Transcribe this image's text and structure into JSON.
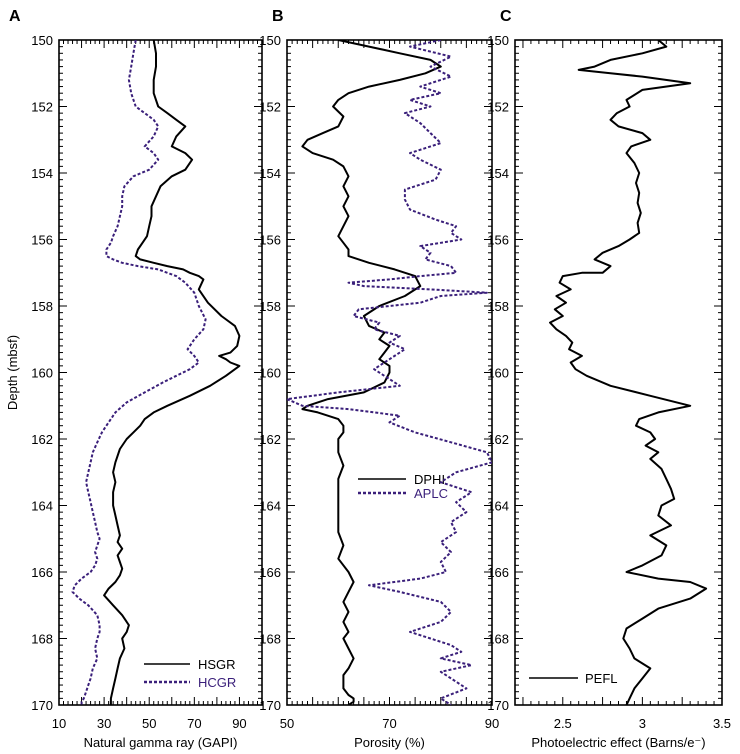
{
  "chart_data": [
    {
      "type": "line",
      "panel_label": "A",
      "xlabel": "Natural gamma ray (GAPI)",
      "ylabel": "Depth (mbsf)",
      "xlim": [
        10,
        100
      ],
      "ylim": [
        150,
        170
      ],
      "x_ticks": [
        10,
        30,
        50,
        70,
        90
      ],
      "y_ticks": [
        150,
        152,
        154,
        156,
        158,
        160,
        162,
        164,
        166,
        168,
        170
      ],
      "legend_position": "bottom-right",
      "series": [
        {
          "name": "HSGR",
          "style": "solid",
          "color": "#000000",
          "x": [
            52,
            53,
            53,
            52,
            52,
            54,
            58,
            62,
            66,
            62,
            60,
            66,
            69,
            66,
            60,
            55,
            53,
            51,
            51,
            50,
            49,
            47,
            45,
            44,
            46,
            52,
            58,
            65,
            68,
            72,
            74,
            72,
            76,
            82,
            88,
            90,
            89,
            86,
            81,
            84,
            86,
            90,
            84,
            77,
            68,
            58,
            52,
            48,
            46,
            43,
            40,
            37,
            35,
            34,
            35,
            34,
            34,
            35,
            36,
            37,
            36,
            38,
            36,
            37,
            38,
            37,
            35,
            32,
            30,
            34,
            38,
            41,
            40,
            38,
            39,
            37,
            36,
            35,
            34,
            33,
            33
          ],
          "y": [
            150,
            150.4,
            150.8,
            151.2,
            151.6,
            152,
            152.2,
            152.4,
            152.6,
            152.9,
            153.2,
            153.4,
            153.6,
            153.9,
            154.1,
            154.4,
            154.7,
            155.0,
            155.3,
            155.6,
            155.9,
            156.1,
            156.3,
            156.5,
            156.6,
            156.7,
            156.8,
            156.9,
            157.0,
            157.1,
            157.2,
            157.5,
            157.9,
            158.3,
            158.6,
            158.9,
            159.2,
            159.4,
            159.5,
            159.6,
            159.7,
            159.8,
            160.1,
            160.4,
            160.7,
            161.0,
            161.2,
            161.4,
            161.6,
            161.8,
            162.0,
            162.3,
            162.7,
            163.0,
            163.3,
            163.6,
            164.0,
            164.3,
            164.6,
            164.9,
            165.1,
            165.3,
            165.5,
            165.7,
            165.9,
            166.1,
            166.3,
            166.5,
            166.7,
            167.0,
            167.3,
            167.6,
            167.8,
            168.0,
            168.3,
            168.6,
            168.9,
            169.2,
            169.5,
            169.8,
            170
          ]
        },
        {
          "name": "HCGR",
          "style": "dotted",
          "color": "#3a1f7a",
          "x": [
            44,
            43,
            42,
            41,
            42,
            44,
            48,
            52,
            54,
            52,
            48,
            52,
            54,
            50,
            43,
            39,
            38,
            38,
            37,
            36,
            34,
            33,
            31,
            31,
            34,
            38,
            45,
            54,
            58,
            62,
            66,
            70,
            72,
            75,
            74,
            70,
            67,
            70,
            72,
            68,
            62,
            56,
            48,
            40,
            35,
            32,
            29,
            27,
            25,
            24,
            23,
            22,
            23,
            24,
            25,
            26,
            27,
            28,
            27,
            26,
            27,
            26,
            24,
            20,
            17,
            16,
            19,
            23,
            27,
            28,
            28,
            27,
            26,
            27,
            25,
            24,
            23,
            22,
            21,
            20,
            20
          ],
          "y": [
            150,
            150.4,
            150.8,
            151.2,
            151.6,
            152,
            152.2,
            152.4,
            152.6,
            152.9,
            153.2,
            153.4,
            153.6,
            153.9,
            154.1,
            154.4,
            154.7,
            155.0,
            155.3,
            155.6,
            155.9,
            156.1,
            156.3,
            156.5,
            156.6,
            156.7,
            156.8,
            156.9,
            157.0,
            157.1,
            157.3,
            157.6,
            158.0,
            158.4,
            158.7,
            159.0,
            159.3,
            159.5,
            159.7,
            159.9,
            160.1,
            160.3,
            160.6,
            160.9,
            161.2,
            161.5,
            161.8,
            162.1,
            162.4,
            162.7,
            163.0,
            163.3,
            163.6,
            163.9,
            164.2,
            164.5,
            164.8,
            165.0,
            165.2,
            165.4,
            165.6,
            165.8,
            166.0,
            166.2,
            166.4,
            166.6,
            166.8,
            167.0,
            167.3,
            167.6,
            167.8,
            168.0,
            168.3,
            168.6,
            168.9,
            169.2,
            169.4,
            169.6,
            169.8,
            169.9,
            170
          ]
        }
      ]
    },
    {
      "type": "line",
      "panel_label": "B",
      "xlabel": "Porosity (%)",
      "ylabel": "",
      "xlim": [
        50,
        90
      ],
      "ylim": [
        150,
        170
      ],
      "x_ticks": [
        50,
        70,
        90
      ],
      "y_ticks": [
        150,
        152,
        154,
        156,
        158,
        160,
        162,
        164,
        166,
        168,
        170
      ],
      "legend_position": "middle-right",
      "series": [
        {
          "name": "DPHI",
          "style": "solid",
          "color": "#000000",
          "x": [
            60,
            66,
            72,
            78,
            80,
            77,
            72,
            66,
            62,
            60,
            59,
            61,
            60,
            57,
            54,
            53,
            55,
            59,
            61,
            62,
            61,
            62,
            61,
            62,
            61,
            60,
            61,
            62,
            62,
            66,
            71,
            75,
            76,
            73,
            68,
            65,
            66,
            69,
            68,
            70,
            69,
            68,
            70,
            70,
            69,
            65,
            58,
            54,
            53,
            56,
            60,
            61,
            61,
            60,
            60,
            61,
            60,
            60,
            60,
            60,
            60,
            61,
            60,
            62,
            63,
            62,
            61,
            62,
            61,
            62,
            61,
            62,
            63,
            62,
            61,
            61,
            61,
            62,
            63,
            63,
            62
          ],
          "y": [
            150,
            150.2,
            150.4,
            150.6,
            150.8,
            151.0,
            151.2,
            151.4,
            151.6,
            151.8,
            152.0,
            152.3,
            152.6,
            152.8,
            153.0,
            153.2,
            153.4,
            153.6,
            153.8,
            154.1,
            154.4,
            154.7,
            155.0,
            155.3,
            155.6,
            155.9,
            156.1,
            156.3,
            156.5,
            156.7,
            156.9,
            157.1,
            157.4,
            157.7,
            158.0,
            158.3,
            158.6,
            158.8,
            159.0,
            159.2,
            159.4,
            159.6,
            159.8,
            160.0,
            160.3,
            160.6,
            160.8,
            161.0,
            161.1,
            161.2,
            161.4,
            161.6,
            161.8,
            162.0,
            162.4,
            162.8,
            163.2,
            163.6,
            164.0,
            164.4,
            164.8,
            165.2,
            165.6,
            166.0,
            166.3,
            166.6,
            166.9,
            167.2,
            167.5,
            167.8,
            168.0,
            168.3,
            168.6,
            168.9,
            169.1,
            169.3,
            169.5,
            169.7,
            169.8,
            169.9,
            170
          ]
        },
        {
          "name": "APLC",
          "style": "dotted",
          "color": "#3a1f7a",
          "x": [
            80,
            74,
            82,
            78,
            82,
            76,
            80,
            74,
            78,
            73,
            76,
            78,
            80,
            74,
            76,
            80,
            79,
            73,
            73,
            74,
            79,
            83,
            82,
            84,
            76,
            78,
            77,
            82,
            83,
            76,
            70,
            62,
            65,
            78,
            89,
            80,
            76,
            64,
            63,
            68,
            67,
            72,
            70,
            73,
            70,
            67,
            70,
            72,
            60,
            50,
            53,
            62,
            72,
            70,
            75,
            82,
            89,
            90,
            83,
            80,
            86,
            83,
            85,
            82,
            83,
            80,
            82,
            80,
            81,
            76,
            66,
            72,
            80,
            82,
            80,
            74,
            78,
            82,
            84,
            80,
            86,
            80,
            82,
            85,
            80,
            82
          ],
          "y": [
            150,
            150.2,
            150.5,
            150.8,
            151.1,
            151.4,
            151.6,
            151.8,
            152.0,
            152.2,
            152.5,
            152.8,
            153.1,
            153.4,
            153.6,
            153.9,
            154.2,
            154.5,
            154.8,
            155.1,
            155.4,
            155.6,
            155.8,
            156.0,
            156.2,
            156.4,
            156.6,
            156.8,
            157.0,
            157.1,
            157.2,
            157.3,
            157.4,
            157.5,
            157.6,
            157.7,
            157.9,
            158.1,
            158.3,
            158.5,
            158.7,
            158.9,
            159.1,
            159.3,
            159.6,
            159.9,
            160.2,
            160.4,
            160.6,
            160.8,
            161.0,
            161.1,
            161.3,
            161.5,
            161.8,
            162.1,
            162.4,
            162.7,
            163.0,
            163.3,
            163.6,
            163.9,
            164.2,
            164.5,
            164.8,
            165.1,
            165.4,
            165.7,
            166.0,
            166.2,
            166.4,
            166.6,
            166.9,
            167.2,
            167.5,
            167.8,
            168.0,
            168.2,
            168.4,
            168.6,
            168.8,
            169.0,
            169.2,
            169.5,
            169.8,
            170
          ]
        }
      ]
    },
    {
      "type": "line",
      "panel_label": "C",
      "xlabel": "Photoelectric effect (Barns/e⁻)",
      "ylabel": "",
      "xlim": [
        2.2,
        3.5
      ],
      "ylim": [
        150,
        170
      ],
      "x_ticks": [
        2.5,
        3,
        3.5
      ],
      "x_tick_labels": [
        "2.5",
        "3",
        "3.5"
      ],
      "y_ticks": [
        150,
        152,
        154,
        156,
        158,
        160,
        162,
        164,
        166,
        168,
        170
      ],
      "legend_position": "bottom-left",
      "series": [
        {
          "name": "PEFL",
          "style": "solid",
          "color": "#000000",
          "x": [
            3.1,
            3.15,
            3.0,
            2.8,
            2.7,
            2.6,
            2.8,
            3.0,
            3.3,
            3.0,
            2.9,
            2.92,
            2.84,
            2.8,
            2.85,
            3.0,
            3.05,
            2.93,
            2.9,
            2.95,
            2.98,
            2.96,
            2.98,
            2.97,
            2.99,
            2.97,
            2.98,
            2.92,
            2.85,
            2.75,
            2.7,
            2.8,
            2.75,
            2.62,
            2.5,
            2.48,
            2.55,
            2.46,
            2.52,
            2.45,
            2.5,
            2.42,
            2.46,
            2.52,
            2.56,
            2.54,
            2.62,
            2.55,
            2.58,
            2.65,
            2.8,
            3.05,
            3.3,
            3.1,
            2.98,
            2.96,
            3.05,
            3.08,
            3.02,
            3.1,
            3.05,
            3.12,
            3.15,
            3.18,
            3.2,
            3.12,
            3.1,
            3.18,
            3.05,
            3.15,
            3.12,
            3.0,
            2.9,
            3.1,
            3.3,
            3.4,
            3.3,
            3.1,
            3.0,
            2.9,
            2.88,
            2.92,
            2.95,
            3.05,
            3.0,
            2.95,
            2.92,
            2.9
          ],
          "y": [
            150,
            150.2,
            150.4,
            150.6,
            150.8,
            150.9,
            151.0,
            151.1,
            151.3,
            151.5,
            151.8,
            152.0,
            152.2,
            152.4,
            152.6,
            152.8,
            153.0,
            153.2,
            153.4,
            153.7,
            154.0,
            154.3,
            154.6,
            154.9,
            155.2,
            155.5,
            155.8,
            156.0,
            156.2,
            156.4,
            156.6,
            156.8,
            157.0,
            157.0,
            157.1,
            157.3,
            157.5,
            157.7,
            157.9,
            158.1,
            158.3,
            158.5,
            158.7,
            158.9,
            159.1,
            159.3,
            159.5,
            159.7,
            159.9,
            160.1,
            160.4,
            160.7,
            161.0,
            161.2,
            161.4,
            161.6,
            161.8,
            162.0,
            162.2,
            162.4,
            162.6,
            162.9,
            163.2,
            163.5,
            163.8,
            164.0,
            164.3,
            164.6,
            164.9,
            165.2,
            165.5,
            165.8,
            166.0,
            166.2,
            166.3,
            166.5,
            166.8,
            167.1,
            167.4,
            167.7,
            168.0,
            168.3,
            168.6,
            168.9,
            169.2,
            169.5,
            169.8,
            170
          ]
        }
      ]
    }
  ]
}
